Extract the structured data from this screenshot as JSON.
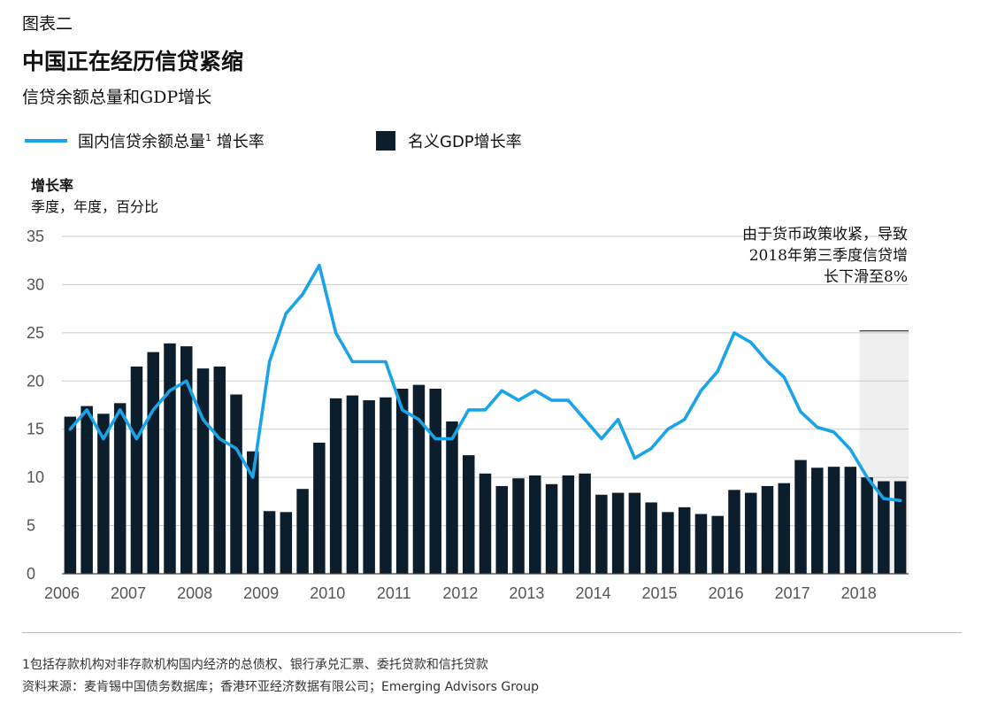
{
  "figure_label": "图表二",
  "title": "中国正在经历信贷紧缩",
  "subtitle": "信贷余额总量和GDP增长",
  "legend": {
    "line_label": "国内信贷余额总量",
    "line_sup": "1",
    "line_suffix": " 增长率",
    "bar_label": "名义GDP增长率"
  },
  "y_axis": {
    "label": "增长率",
    "unit": "季度，年度，百分比"
  },
  "annotation": "由于货币政策收紧，导致2018年第三季度信贷增长下滑至8%",
  "footnote": "1包括存款机构对非存款机构国内经济的总债权、银行承兑汇票、委托贷款和信托贷款",
  "source": "资料来源：麦肯锡中国债务数据库；香港环亚经济数据有限公司；Emerging Advisors Group",
  "colors": {
    "line": "#1aa3e8",
    "bar": "#0c1e2c",
    "highlight": "#efefef",
    "grid": "#cccccc"
  },
  "chart_data": {
    "type": "bar+line",
    "x_tick_labels": [
      "2006",
      "2007",
      "2008",
      "2009",
      "2010",
      "2011",
      "2012",
      "2013",
      "2014",
      "2015",
      "2016",
      "2017",
      "2018"
    ],
    "period_start_year": 2006,
    "periods": 51,
    "ylim": [
      0,
      35
    ],
    "yticks": [
      0,
      5,
      10,
      15,
      20,
      25,
      30,
      35
    ],
    "grid": true,
    "highlight_start_year": 2018,
    "series": [
      {
        "name": "名义GDP增长率",
        "kind": "bar",
        "values": [
          16.3,
          17.4,
          16.6,
          17.7,
          21.5,
          23.0,
          23.9,
          23.6,
          21.3,
          21.5,
          18.6,
          12.7,
          6.5,
          6.4,
          8.8,
          13.6,
          18.2,
          18.5,
          18.0,
          18.3,
          19.2,
          19.6,
          19.2,
          15.8,
          12.3,
          10.4,
          9.1,
          9.9,
          10.2,
          9.3,
          10.2,
          10.4,
          8.2,
          8.4,
          8.4,
          7.4,
          6.4,
          6.9,
          6.2,
          6.0,
          8.7,
          8.4,
          9.1,
          9.4,
          11.8,
          11.0,
          11.1,
          11.1,
          10.0,
          9.6,
          9.6
        ]
      },
      {
        "name": "国内信贷余额总量增长率",
        "kind": "line",
        "values": [
          15.0,
          17.0,
          14.0,
          17.0,
          14.0,
          17.0,
          19.0,
          20.0,
          16.0,
          14.0,
          13.0,
          10.0,
          22.0,
          27.0,
          29.0,
          32.0,
          25.0,
          22.0,
          22.0,
          22.0,
          17.0,
          16.0,
          14.0,
          14.0,
          17.0,
          17.0,
          19.0,
          18.0,
          19.0,
          18.0,
          18.0,
          16.0,
          14.0,
          16.0,
          12.0,
          13.0,
          15.0,
          16.0,
          19.0,
          21.0,
          25.0,
          24.0,
          22.0,
          20.4,
          16.8,
          15.2,
          14.7,
          12.9,
          10.0,
          7.8,
          7.6
        ]
      }
    ]
  }
}
